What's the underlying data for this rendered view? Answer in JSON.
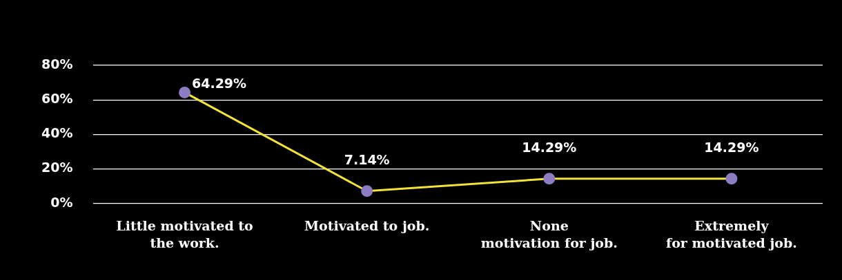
{
  "chart_data": {
    "type": "line",
    "categories": [
      "Little motivated to\nthe work.",
      "Motivated to job.",
      "None\nmotivation for job.",
      "Extremely\nfor motivated job."
    ],
    "series": [
      {
        "color": "#f2e33a",
        "colors": [
          "#8e7cc3",
          "#8e7cc3",
          "#8e7cc3",
          "#8e7cc3"
        ],
        "values": [
          64.29,
          7.14,
          14.29,
          14.29
        ],
        "value_labels": [
          "64.29%",
          "7.14%",
          "14.29%",
          "14.29%"
        ]
      }
    ],
    "marker": "circle",
    "ylim": [
      0,
      80
    ],
    "yticks": [
      {
        "value": 0,
        "label": "0%"
      },
      {
        "value": 20,
        "label": "20%"
      },
      {
        "value": 40,
        "label": "40%"
      },
      {
        "value": 60,
        "label": "60%"
      },
      {
        "value": 80,
        "label": "80%"
      }
    ],
    "grid": "y",
    "legend": false
  }
}
